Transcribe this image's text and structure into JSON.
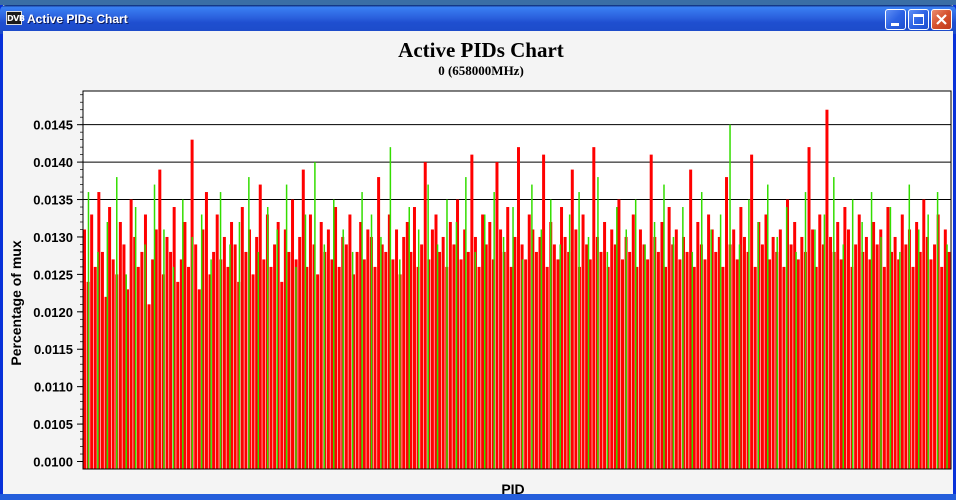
{
  "window": {
    "app_icon_text": "DVB",
    "title": "Active PIDs Chart",
    "buttons": [
      "minimize-icon",
      "maximize-icon",
      "close-icon"
    ]
  },
  "colors": {
    "bar_primary": "#ff0000",
    "bar_secondary": "#33dd00",
    "titlebar": "#2a5fdc"
  },
  "chart_data": {
    "type": "bar",
    "title": "Active PIDs Chart",
    "subtitle": "0 (658000MHz)",
    "xlabel": "PID",
    "ylabel": "Percentage of mux",
    "ylim": [
      0.0099,
      0.01495
    ],
    "yticks": [
      "0.0100",
      "0.0105",
      "0.0110",
      "0.0115",
      "0.0120",
      "0.0125",
      "0.0130",
      "0.0135",
      "0.0140",
      "0.0145"
    ],
    "grid": "horizontal lines at 0.0135, 0.0140, 0.0145",
    "x_tick_labels": "none",
    "series": [
      {
        "color": "red",
        "values": [
          0.0131,
          0.0124,
          0.0133,
          0.0126,
          0.0136,
          0.0128,
          0.0122,
          0.0134,
          0.0127,
          0.0125,
          0.0132,
          0.0129,
          0.0123,
          0.0135,
          0.013,
          0.0126,
          0.0128,
          0.0133,
          0.0121,
          0.0127,
          0.0131,
          0.0139,
          0.0125,
          0.013,
          0.0128,
          0.0134,
          0.0124,
          0.0127,
          0.0132,
          0.0126,
          0.0143,
          0.0129,
          0.0123,
          0.0131,
          0.0136,
          0.0125,
          0.0128,
          0.0133,
          0.0127,
          0.013,
          0.0126,
          0.0132,
          0.0129,
          0.0124,
          0.0134,
          0.0128,
          0.0131,
          0.0125,
          0.013,
          0.0137,
          0.0127,
          0.0133,
          0.0126,
          0.0129,
          0.0132,
          0.0124,
          0.0131,
          0.0128,
          0.0135,
          0.0127,
          0.013,
          0.0139,
          0.0126,
          0.0133,
          0.0129,
          0.0125,
          0.0132,
          0.0128,
          0.0131,
          0.0127,
          0.0134,
          0.0126,
          0.013,
          0.0129,
          0.0133,
          0.0125,
          0.0128,
          0.0132,
          0.0127,
          0.0131,
          0.013,
          0.0126,
          0.0138,
          0.0129,
          0.0128,
          0.0133,
          0.0127,
          0.0131,
          0.0125,
          0.013,
          0.0132,
          0.0128,
          0.0134,
          0.0126,
          0.0129,
          0.014,
          0.0127,
          0.0131,
          0.0133,
          0.0128,
          0.013,
          0.0126,
          0.0132,
          0.0129,
          0.0135,
          0.0127,
          0.0131,
          0.0128,
          0.0141,
          0.013,
          0.0126,
          0.0133,
          0.0129,
          0.0132,
          0.0127,
          0.014,
          0.0131,
          0.0128,
          0.0134,
          0.0126,
          0.013,
          0.0142,
          0.0129,
          0.0127,
          0.0133,
          0.0131,
          0.0128,
          0.013,
          0.0141,
          0.0126,
          0.0132,
          0.0129,
          0.0127,
          0.0134,
          0.013,
          0.0128,
          0.0139,
          0.0131,
          0.0126,
          0.0133,
          0.0129,
          0.0127,
          0.0142,
          0.013,
          0.0128,
          0.0132,
          0.0126,
          0.0131,
          0.0129,
          0.0135,
          0.0127,
          0.013,
          0.0128,
          0.0133,
          0.0126,
          0.0131,
          0.0129,
          0.0127,
          0.0141,
          0.013,
          0.0128,
          0.0132,
          0.0126,
          0.0134,
          0.0129,
          0.0131,
          0.0127,
          0.013,
          0.0128,
          0.0139,
          0.0126,
          0.0132,
          0.0129,
          0.0127,
          0.0133,
          0.0131,
          0.0128,
          0.013,
          0.0126,
          0.0138,
          0.0129,
          0.0131,
          0.0127,
          0.0134,
          0.013,
          0.0128,
          0.0141,
          0.0126,
          0.0132,
          0.0129,
          0.0133,
          0.0127,
          0.013,
          0.0128,
          0.0131,
          0.0126,
          0.0135,
          0.0129,
          0.0132,
          0.0127,
          0.013,
          0.0128,
          0.0142,
          0.0131,
          0.0126,
          0.0133,
          0.0129,
          0.0147,
          0.013,
          0.0128,
          0.0132,
          0.0127,
          0.0134,
          0.0131,
          0.0126,
          0.0129,
          0.0133,
          0.0128,
          0.013,
          0.0127,
          0.0132,
          0.0129,
          0.0131,
          0.0126,
          0.0134,
          0.0128,
          0.013,
          0.0127,
          0.0133,
          0.0129,
          0.0131,
          0.0126,
          0.0132,
          0.0128,
          0.0135,
          0.013,
          0.0127,
          0.0129,
          0.0133,
          0.0126,
          0.0131,
          0.0128
        ]
      },
      {
        "color": "green",
        "values": [
          0.0136,
          0.0128,
          0.0132,
          0.0138,
          0.0125,
          0.0134,
          0.0129,
          0.0137,
          0.0131,
          0.0126,
          0.0135,
          0.013,
          0.0133,
          0.0127,
          0.0136,
          0.0129,
          0.0132,
          0.0138,
          0.0128,
          0.0134,
          0.0131,
          0.0137,
          0.0126,
          0.0133,
          0.014,
          0.0129,
          0.0135,
          0.0131,
          0.0128,
          0.0136,
          0.0133,
          0.013,
          0.0142,
          0.0127,
          0.0134,
          0.0131,
          0.0137,
          0.0129,
          0.0135,
          0.0132,
          0.0138,
          0.0128,
          0.0133,
          0.0136,
          0.013,
          0.0134,
          0.0127,
          0.0137,
          0.0131,
          0.0135,
          0.0129,
          0.0133,
          0.0136,
          0.013,
          0.0138,
          0.0128,
          0.0134,
          0.0131,
          0.0135,
          0.0129,
          0.0132,
          0.0137,
          0.013,
          0.0134,
          0.0128,
          0.0136,
          0.0131,
          0.0133,
          0.0145,
          0.0129,
          0.0135,
          0.0132,
          0.0137,
          0.013,
          0.0134,
          0.0128,
          0.0136,
          0.0131,
          0.0133,
          0.0138,
          0.0129,
          0.0135,
          0.0132,
          0.0136,
          0.013,
          0.0134,
          0.0128,
          0.0137,
          0.0131,
          0.0133,
          0.0136,
          0.0129
        ]
      }
    ]
  }
}
